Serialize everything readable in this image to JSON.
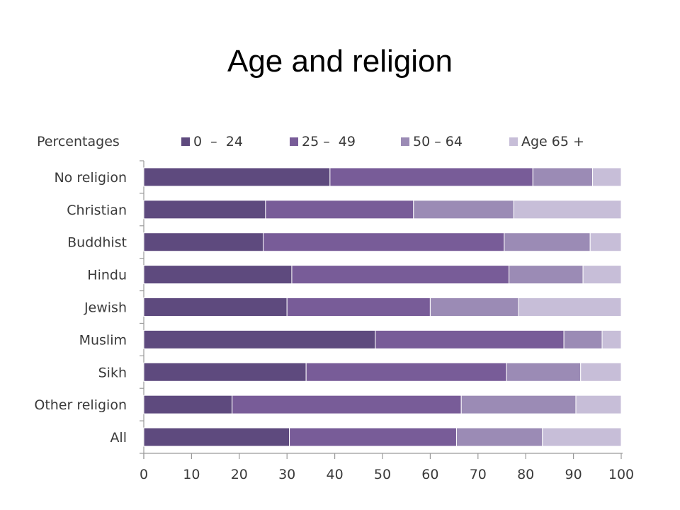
{
  "chart_data": {
    "type": "bar",
    "orientation": "horizontal",
    "stacked": true,
    "title": "Age and religion",
    "ylabel": "Percentages",
    "categories": [
      "No religion",
      "Christian",
      "Buddhist",
      "Hindu",
      "Jewish",
      "Muslim",
      "Sikh",
      "Other religion",
      "All"
    ],
    "series": [
      {
        "name": "0  –  24",
        "color": "#5e4a7e",
        "values": [
          39,
          25.5,
          25,
          31,
          30,
          48.5,
          34,
          18.5,
          30.5
        ]
      },
      {
        "name": "25 –  49",
        "color": "#785c98",
        "values": [
          42.5,
          31,
          50.5,
          45.5,
          30,
          39.5,
          42,
          48,
          35
        ]
      },
      {
        "name": "50 – 64",
        "color": "#9b8bb5",
        "values": [
          12.5,
          21,
          18,
          15.5,
          18.5,
          8,
          15.5,
          24,
          18
        ]
      },
      {
        "name": "Age 65 +",
        "color": "#c7bed8",
        "values": [
          6,
          22.5,
          6.5,
          8,
          21.5,
          4,
          8.5,
          9.5,
          16.5
        ]
      }
    ],
    "xlim": [
      0,
      100
    ],
    "xticks": [
      0,
      10,
      20,
      30,
      40,
      50,
      60,
      70,
      80,
      90,
      100
    ],
    "legend": "top",
    "grid": false
  }
}
